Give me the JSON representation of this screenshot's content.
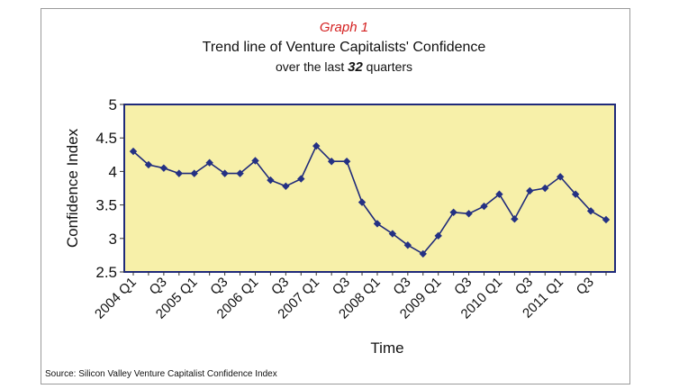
{
  "chart_data": {
    "type": "line",
    "graph_label": "Graph 1",
    "title": "Trend line of Venture Capitalists' Confidence",
    "subtitle_prefix": "over the last ",
    "subtitle_number": "32",
    "subtitle_suffix": " quarters",
    "xlabel": "Time",
    "ylabel": "Confidence Index",
    "ylim": [
      2.5,
      5
    ],
    "yticks": [
      2.5,
      3,
      3.5,
      4,
      4.5,
      5
    ],
    "ytick_labels": [
      "2.5",
      "3",
      "3.5",
      "4",
      "4.5",
      "5"
    ],
    "grid": false,
    "colors": {
      "plot_background": "#f7f0a9",
      "line": "#1f2a7a",
      "marker": "#243184",
      "border": "#1f2a7a",
      "graph_label": "#d42020"
    },
    "categories": [
      "2004 Q1",
      "Q2",
      "Q3",
      "Q4",
      "2005 Q1",
      "Q2",
      "Q3",
      "Q4",
      "2006 Q1",
      "Q2",
      "Q3",
      "Q4",
      "2007 Q1",
      "Q2",
      "Q3",
      "Q4",
      "2008 Q1",
      "Q2",
      "Q3",
      "Q4",
      "2009 Q1",
      "Q2",
      "Q3",
      "Q4",
      "2010 Q1",
      "Q2",
      "Q3",
      "Q4",
      "2011 Q1",
      "Q2",
      "Q3",
      "Q4"
    ],
    "tick_labels": [
      {
        "index": 0,
        "label": "2004 Q1"
      },
      {
        "index": 2,
        "label": "Q3"
      },
      {
        "index": 4,
        "label": "2005 Q1"
      },
      {
        "index": 6,
        "label": "Q3"
      },
      {
        "index": 8,
        "label": "2006 Q1"
      },
      {
        "index": 10,
        "label": "Q3"
      },
      {
        "index": 12,
        "label": "2007 Q1"
      },
      {
        "index": 14,
        "label": "Q3"
      },
      {
        "index": 16,
        "label": "2008 Q1"
      },
      {
        "index": 18,
        "label": "Q3"
      },
      {
        "index": 20,
        "label": "2009 Q1"
      },
      {
        "index": 22,
        "label": "Q3"
      },
      {
        "index": 24,
        "label": "2010 Q1"
      },
      {
        "index": 26,
        "label": "Q3"
      },
      {
        "index": 28,
        "label": "2011 Q1"
      },
      {
        "index": 30,
        "label": "Q3"
      }
    ],
    "series": [
      {
        "values": [
          4.3,
          4.1,
          4.05,
          3.97,
          3.97,
          4.13,
          3.97,
          3.97,
          4.16,
          3.87,
          3.78,
          3.89,
          4.38,
          4.15,
          4.15,
          3.54,
          3.22,
          3.07,
          2.9,
          2.77,
          3.04,
          3.39,
          3.37,
          3.48,
          3.66,
          3.29,
          3.71,
          3.75,
          3.92,
          3.66,
          3.41,
          3.28
        ]
      }
    ]
  },
  "source": "Source: Silicon Valley Venture Capitalist Confidence Index"
}
